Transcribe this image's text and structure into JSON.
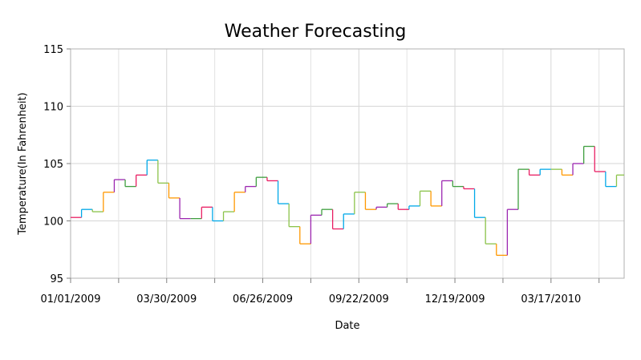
{
  "chart_data": {
    "type": "line",
    "title": "Weather Forecasting",
    "xlabel": "Date",
    "ylabel": "Temperature(In Fahrenheit)",
    "x_range": [
      "2009-01-01",
      "2010-05-23"
    ],
    "ylim": [
      95,
      115
    ],
    "y_ticks": [
      95,
      100,
      105,
      110,
      115
    ],
    "x_ticks": [
      {
        "date": "2009-01-01",
        "label": "01/01/2009"
      },
      {
        "date": "2009-03-30",
        "label": "03/30/2009"
      },
      {
        "date": "2009-06-26",
        "label": "06/26/2009"
      },
      {
        "date": "2009-09-22",
        "label": "09/22/2009"
      },
      {
        "date": "2009-12-19",
        "label": "12/19/2009"
      },
      {
        "date": "2010-03-17",
        "label": "03/17/2010"
      }
    ],
    "grid": true,
    "style": "multicolored step line",
    "segment_colors": [
      "#E91E63",
      "#00A8E8",
      "#8BC34A",
      "#FF9800",
      "#9C27B0",
      "#3F9F3F"
    ],
    "series": [
      {
        "values": [
          {
            "x": "2009-01-01",
            "y": 100.3
          },
          {
            "x": "2009-01-11",
            "y": 101.0
          },
          {
            "x": "2009-01-21",
            "y": 100.8
          },
          {
            "x": "2009-01-31",
            "y": 102.5
          },
          {
            "x": "2009-02-10",
            "y": 103.6
          },
          {
            "x": "2009-02-20",
            "y": 103.0
          },
          {
            "x": "2009-03-02",
            "y": 104.0
          },
          {
            "x": "2009-03-12",
            "y": 105.3
          },
          {
            "x": "2009-03-22",
            "y": 103.3
          },
          {
            "x": "2009-04-01",
            "y": 102.0
          },
          {
            "x": "2009-04-11",
            "y": 100.2
          },
          {
            "x": "2009-04-21",
            "y": 100.2
          },
          {
            "x": "2009-05-01",
            "y": 101.2
          },
          {
            "x": "2009-05-11",
            "y": 100.0
          },
          {
            "x": "2009-05-21",
            "y": 100.8
          },
          {
            "x": "2009-05-31",
            "y": 102.5
          },
          {
            "x": "2009-06-10",
            "y": 103.0
          },
          {
            "x": "2009-06-20",
            "y": 103.8
          },
          {
            "x": "2009-06-30",
            "y": 103.5
          },
          {
            "x": "2009-07-10",
            "y": 101.5
          },
          {
            "x": "2009-07-20",
            "y": 99.5
          },
          {
            "x": "2009-07-30",
            "y": 98.0
          },
          {
            "x": "2009-08-09",
            "y": 100.5
          },
          {
            "x": "2009-08-19",
            "y": 101.0
          },
          {
            "x": "2009-08-29",
            "y": 99.3
          },
          {
            "x": "2009-09-08",
            "y": 100.6
          },
          {
            "x": "2009-09-18",
            "y": 102.5
          },
          {
            "x": "2009-09-28",
            "y": 101.0
          },
          {
            "x": "2009-10-08",
            "y": 101.2
          },
          {
            "x": "2009-10-18",
            "y": 101.5
          },
          {
            "x": "2009-10-28",
            "y": 101.0
          },
          {
            "x": "2009-11-07",
            "y": 101.3
          },
          {
            "x": "2009-11-17",
            "y": 102.6
          },
          {
            "x": "2009-11-27",
            "y": 101.3
          },
          {
            "x": "2009-12-07",
            "y": 103.5
          },
          {
            "x": "2009-12-17",
            "y": 103.0
          },
          {
            "x": "2009-12-27",
            "y": 102.8
          },
          {
            "x": "2010-01-06",
            "y": 100.3
          },
          {
            "x": "2010-01-16",
            "y": 98.0
          },
          {
            "x": "2010-01-26",
            "y": 97.0
          },
          {
            "x": "2010-02-05",
            "y": 101.0
          },
          {
            "x": "2010-02-15",
            "y": 104.5
          },
          {
            "x": "2010-02-25",
            "y": 104.0
          },
          {
            "x": "2010-03-07",
            "y": 104.5
          },
          {
            "x": "2010-03-17",
            "y": 104.5
          },
          {
            "x": "2010-03-27",
            "y": 104.0
          },
          {
            "x": "2010-04-06",
            "y": 105.0
          },
          {
            "x": "2010-04-16",
            "y": 106.5
          },
          {
            "x": "2010-04-26",
            "y": 104.3
          },
          {
            "x": "2010-05-06",
            "y": 103.0
          },
          {
            "x": "2010-05-16",
            "y": 104.0
          }
        ]
      }
    ]
  }
}
